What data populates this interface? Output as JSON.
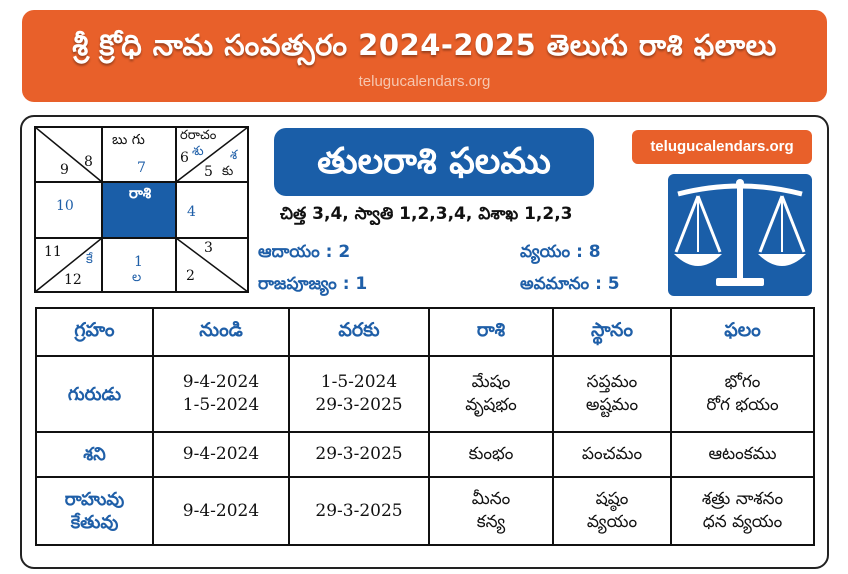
{
  "banner": {
    "title": "శ్రీ క్రోధి నామ సంవత్సరం 2024-2025 తెలుగు రాశి ఫలాలు",
    "url": "telugucalendars.org"
  },
  "kundali": {
    "cells": {
      "c9": "9",
      "c8": "8",
      "c7_top": "బు  గు",
      "c7": "7",
      "c6_top": "రరాచం",
      "c6": "6",
      "c6_blue": "శు",
      "c6_blue2": "శ",
      "c5": "5",
      "c5_text": "కు",
      "c10": "10",
      "center": "రాశి",
      "c4": "4",
      "c11": "11",
      "c12": "12",
      "c12_blue": "కే",
      "c1": "1",
      "c1_blue": "ల",
      "c3": "3",
      "c2": "2"
    }
  },
  "title": "తులరాశి ఫలము",
  "url_badge": "telugucalendars.org",
  "nakshatra": "చిత్త 3,4, స్వాతి 1,2,3,4, విశాఖ 1,2,3",
  "stats": {
    "aadaayam": "ఆదాయం : 2",
    "vyayam": "వ్యయం : 8",
    "rajapujyam": "రాజపూజ్యం : 1",
    "avamanam": "అవమానం : 5"
  },
  "table": {
    "headers": [
      "గ్రహం",
      "నుండి",
      "వరకు",
      "రాశి",
      "స్థానం",
      "ఫలం"
    ],
    "rows": [
      {
        "planet": "గురుడు",
        "from": [
          "9-4-2024",
          "1-5-2024"
        ],
        "to": [
          "1-5-2024",
          "29-3-2025"
        ],
        "rashi": [
          "మేషం",
          "వృషభం"
        ],
        "sthanam": [
          "సప్తమం",
          "అష్టమం"
        ],
        "phalam": [
          "భోగం",
          "రోగ భయం"
        ]
      },
      {
        "planet": "శని",
        "from": [
          "9-4-2024"
        ],
        "to": [
          "29-3-2025"
        ],
        "rashi": [
          "కుంభం"
        ],
        "sthanam": [
          "పంచమం"
        ],
        "phalam": [
          "ఆటంకము"
        ]
      },
      {
        "planet": [
          "రాహువు",
          "కేతువు"
        ],
        "from": [
          "9-4-2024"
        ],
        "to": [
          "29-3-2025"
        ],
        "rashi": [
          "మీనం",
          "కన్య"
        ],
        "sthanam": [
          "షష్ఠం",
          "వ్యయం"
        ],
        "phalam": [
          "శత్రు నాశనం",
          "ధన వ్యయం"
        ]
      }
    ]
  },
  "colors": {
    "orange": "#e8602a",
    "blue": "#1a5ea8"
  },
  "icons": {
    "emblem": "libra-scale-icon"
  }
}
